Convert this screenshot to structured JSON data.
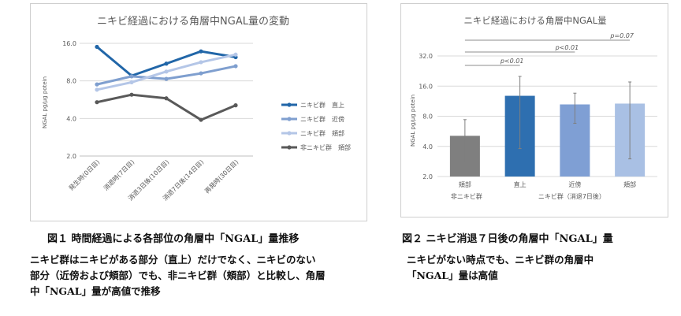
{
  "chart_data": [
    {
      "type": "line",
      "title": "ニキビ経過における角層中NGAL量の変動",
      "ylabel": "NGAL pg/μg potein",
      "yscale": "log2",
      "yticks": [
        "2.0",
        "4.0",
        "8.0",
        "16.0"
      ],
      "ytick_values": [
        2,
        4,
        8,
        16
      ],
      "categories": [
        "発生時(0日目)",
        "消退時(7日目)",
        "消退3日後(10日目)",
        "消退7日後(14日目)",
        "再発時(30日目)"
      ],
      "series": [
        {
          "name": "ニキビ群　直上",
          "color": "#2166a8",
          "values": [
            15.0,
            8.8,
            11.0,
            13.8,
            12.4
          ]
        },
        {
          "name": "ニキビ群　近傍",
          "color": "#7f9fcf",
          "values": [
            7.5,
            8.7,
            8.3,
            9.2,
            10.5
          ]
        },
        {
          "name": "ニキビ群　頬部",
          "color": "#b4c6e7",
          "values": [
            6.8,
            7.8,
            9.5,
            11.3,
            13.0
          ]
        },
        {
          "name": "非ニキビ群　頬部",
          "color": "#595959",
          "values": [
            5.4,
            6.2,
            5.8,
            3.9,
            5.1
          ]
        }
      ],
      "legend": "right",
      "grid": true
    },
    {
      "type": "bar",
      "title": "ニキビ経過における角層中NGAL量",
      "ylabel": "NGAL pg/μg potein",
      "yscale": "log2",
      "yticks": [
        "2.0",
        "4.0",
        "8.0",
        "16.0",
        "32.0"
      ],
      "ytick_values": [
        2,
        4,
        8,
        16,
        32
      ],
      "categories": [
        "頬部",
        "直上",
        "近傍",
        "頬部"
      ],
      "group_labels": [
        "非ニキビ群",
        "ニキビ群（消退7日後）"
      ],
      "values": [
        5.1,
        12.8,
        10.5,
        10.7
      ],
      "error_low": [
        2.8,
        3.8,
        6.8,
        3.0
      ],
      "error_high": [
        7.4,
        20.0,
        13.6,
        17.6
      ],
      "colors": [
        "#7f7f7f",
        "#2e6fb0",
        "#7f9fd4",
        "#a9c0e4"
      ],
      "significance": [
        {
          "label": "p<0.01",
          "from": 0,
          "to": 1
        },
        {
          "label": "p<0.01",
          "from": 0,
          "to": 2
        },
        {
          "label": "p=0.07",
          "from": 0,
          "to": 3
        }
      ],
      "grid": true
    }
  ],
  "captions": {
    "fig1": "図１ 時間経過による各部位の角層中「NGAL」量推移",
    "fig2": "図２ ニキビ消退７日後の角層中「NGAL」量",
    "desc1": [
      "ニキビ群はニキビがある部分（直上）だけでなく、ニキビのない",
      "部分（近傍および頬部）でも、非ニキビ群（頬部）と比較し、角層",
      "中「NGAL」量が高値で推移"
    ],
    "desc2": [
      "ニキビがない時点でも、ニキビ群の角層中",
      "「NGAL」量は高値"
    ]
  }
}
